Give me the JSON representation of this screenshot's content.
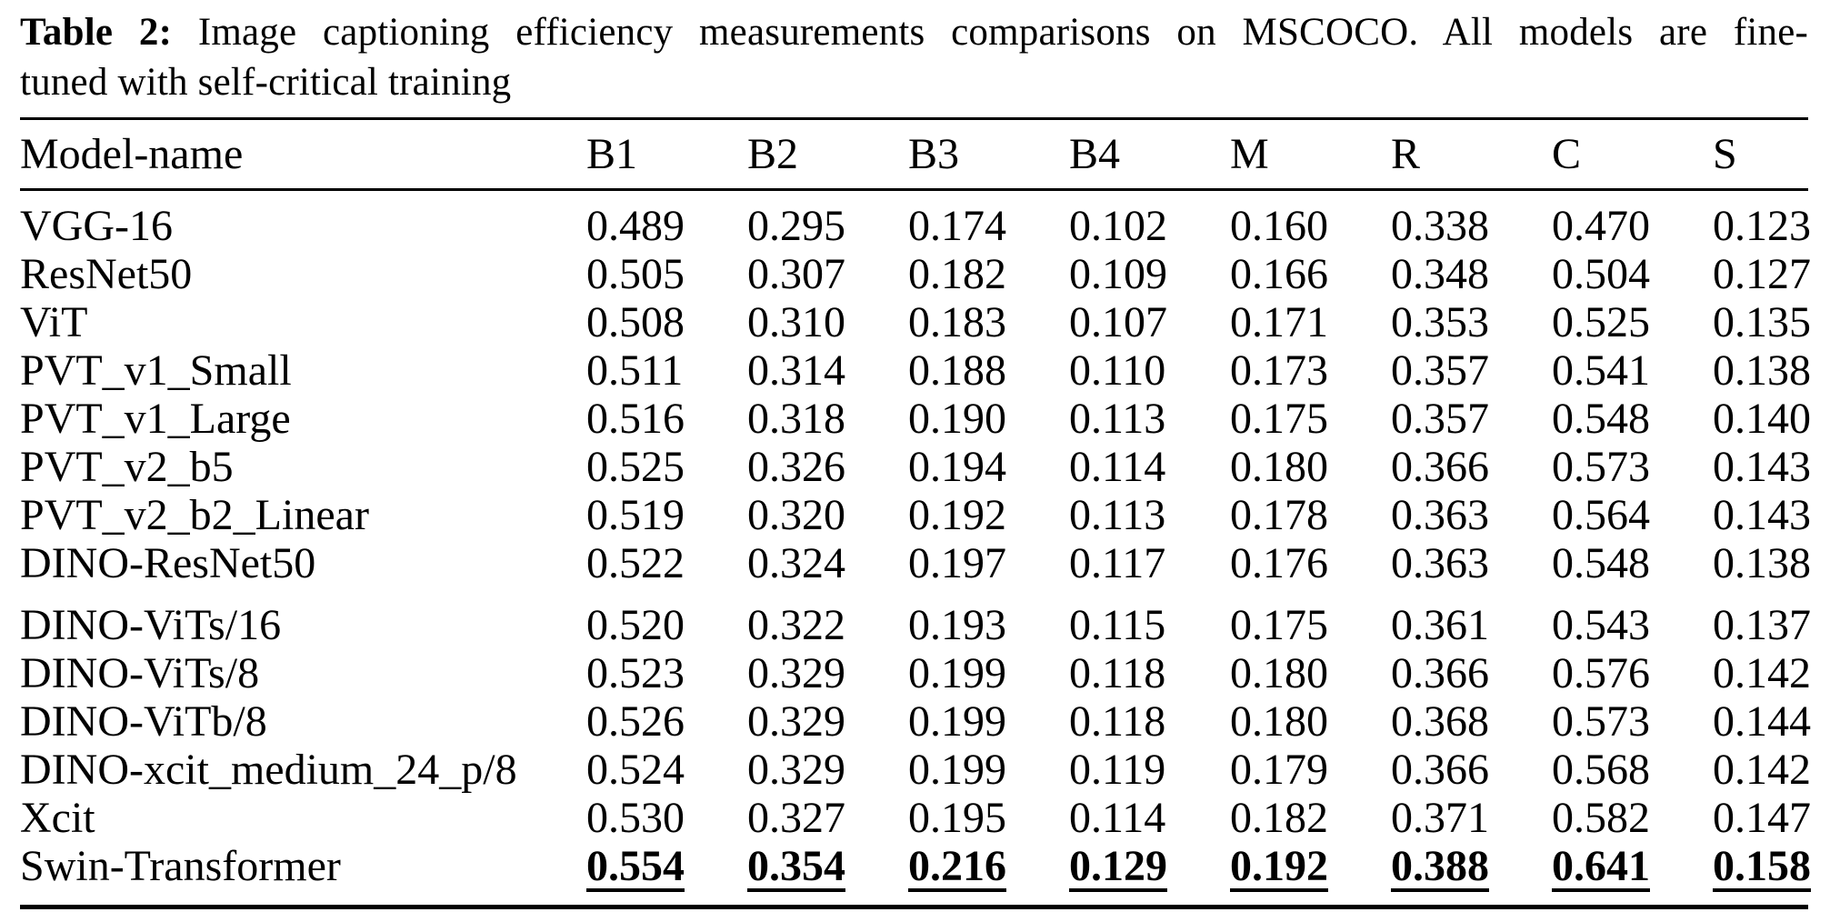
{
  "caption": {
    "label": "Table 2:",
    "line1": "Image captioning efficiency measurements comparisons on MSCOCO. All models are fine-",
    "line2": "tuned with self-critical training"
  },
  "table": {
    "columns": [
      "Model-name",
      "B1",
      "B2",
      "B3",
      "B4",
      "M",
      "R",
      "C",
      "S"
    ],
    "rows": [
      {
        "model": "VGG-16",
        "values": [
          "0.489",
          "0.295",
          "0.174",
          "0.102",
          "0.160",
          "0.338",
          "0.470",
          "0.123"
        ]
      },
      {
        "model": "ResNet50",
        "values": [
          "0.505",
          "0.307",
          "0.182",
          "0.109",
          "0.166",
          "0.348",
          "0.504",
          "0.127"
        ]
      },
      {
        "model": "ViT",
        "values": [
          "0.508",
          "0.310",
          "0.183",
          "0.107",
          "0.171",
          "0.353",
          "0.525",
          "0.135"
        ]
      },
      {
        "model": "PVT_v1_Small",
        "values": [
          "0.511",
          "0.314",
          "0.188",
          "0.110",
          "0.173",
          "0.357",
          "0.541",
          "0.138"
        ]
      },
      {
        "model": "PVT_v1_Large",
        "values": [
          "0.516",
          "0.318",
          "0.190",
          "0.113",
          "0.175",
          "0.357",
          "0.548",
          "0.140"
        ]
      },
      {
        "model": "PVT_v2_b5",
        "values": [
          "0.525",
          "0.326",
          "0.194",
          "0.114",
          "0.180",
          "0.366",
          "0.573",
          "0.143"
        ]
      },
      {
        "model": "PVT_v2_b2_Linear",
        "values": [
          "0.519",
          "0.320",
          "0.192",
          "0.113",
          "0.178",
          "0.363",
          "0.564",
          "0.143"
        ]
      },
      {
        "model": "DINO-ResNet50",
        "values": [
          "0.522",
          "0.324",
          "0.197",
          "0.117",
          "0.176",
          "0.363",
          "0.548",
          "0.138"
        ]
      },
      {
        "model": "DINO-ViTs/16",
        "values": [
          "0.520",
          "0.322",
          "0.193",
          "0.115",
          "0.175",
          "0.361",
          "0.543",
          "0.137"
        ],
        "group_gap": true
      },
      {
        "model": "DINO-ViTs/8",
        "values": [
          "0.523",
          "0.329",
          "0.199",
          "0.118",
          "0.180",
          "0.366",
          "0.576",
          "0.142"
        ]
      },
      {
        "model": "DINO-ViTb/8",
        "values": [
          "0.526",
          "0.329",
          "0.199",
          "0.118",
          "0.180",
          "0.368",
          "0.573",
          "0.144"
        ]
      },
      {
        "model": "DINO-xcit_medium_24_p/8",
        "values": [
          "0.524",
          "0.329",
          "0.199",
          "0.119",
          "0.179",
          "0.366",
          "0.568",
          "0.142"
        ]
      },
      {
        "model": "Xcit",
        "values": [
          "0.530",
          "0.327",
          "0.195",
          "0.114",
          "0.182",
          "0.371",
          "0.582",
          "0.147"
        ]
      },
      {
        "model": "Swin-Transformer",
        "values": [
          "0.554",
          "0.354",
          "0.216",
          "0.129",
          "0.192",
          "0.388",
          "0.641",
          "0.158"
        ],
        "highlight": true
      }
    ]
  }
}
